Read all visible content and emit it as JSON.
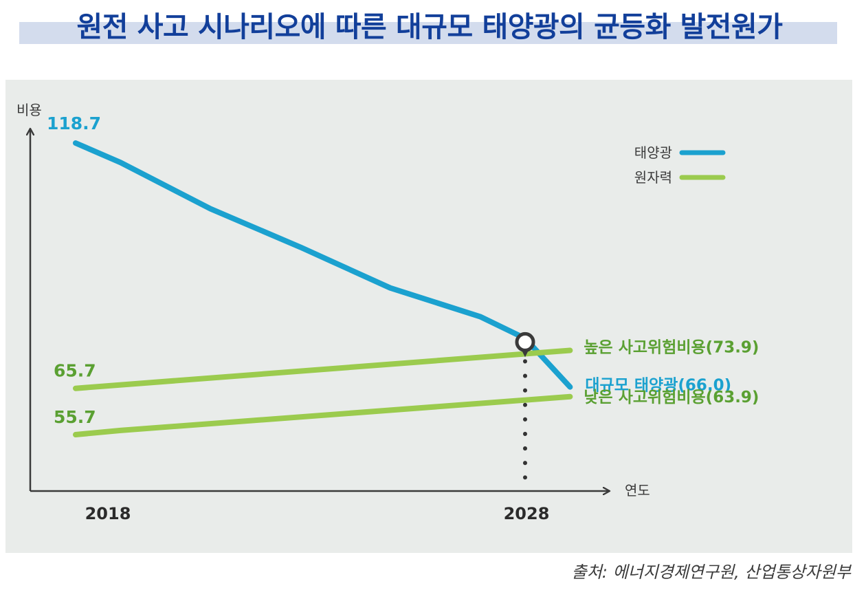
{
  "title": "원전 사고 시나리오에 따른 대규모 태양광의 균등화 발전원가",
  "source": "출처: 에너지경제연구원, 산업통상자원부",
  "colors": {
    "solar": "#1ba1cf",
    "nuclear": "#9bcb4e",
    "nuclear_text": "#5aa032",
    "axis": "#3a3a3a",
    "title": "#123f9a",
    "panel": "#e9ecea"
  },
  "chart_data": {
    "type": "line",
    "xlabel": "연도",
    "ylabel": "비용",
    "x_ticks": [
      "2018",
      "2028"
    ],
    "legend": [
      {
        "label": "태양광",
        "color": "#1ba1cf"
      },
      {
        "label": "원자력",
        "color": "#9bcb4e"
      }
    ],
    "legend_position": "top-right",
    "grid": false,
    "series": [
      {
        "name": "대규모 태양광",
        "group": "태양광",
        "color": "#1ba1cf",
        "x": [
          2018,
          2019,
          2021,
          2023,
          2025,
          2027,
          2028,
          2029
        ],
        "y": [
          118.7,
          114.5,
          104.5,
          96.2,
          87.4,
          81.2,
          76.5,
          66.0
        ],
        "start_label": "118.7",
        "end_label": "대규모 태양광(66.0)"
      },
      {
        "name": "높은 사고위험비용",
        "group": "원자력",
        "color": "#9bcb4e",
        "x": [
          2018,
          2029
        ],
        "y": [
          65.7,
          73.9
        ],
        "start_label": "65.7",
        "end_label": "높은 사고위험비용(73.9)"
      },
      {
        "name": "낮은 사고위험비용",
        "group": "원자력",
        "color": "#9bcb4e",
        "x": [
          2018,
          2019,
          2029
        ],
        "y": [
          55.7,
          56.6,
          63.9
        ],
        "start_label": "55.7",
        "end_label": "낮은 사고위험비용(63.9)"
      }
    ],
    "marker": {
      "x": 2028,
      "y": 75.7,
      "note": "crossover"
    }
  }
}
